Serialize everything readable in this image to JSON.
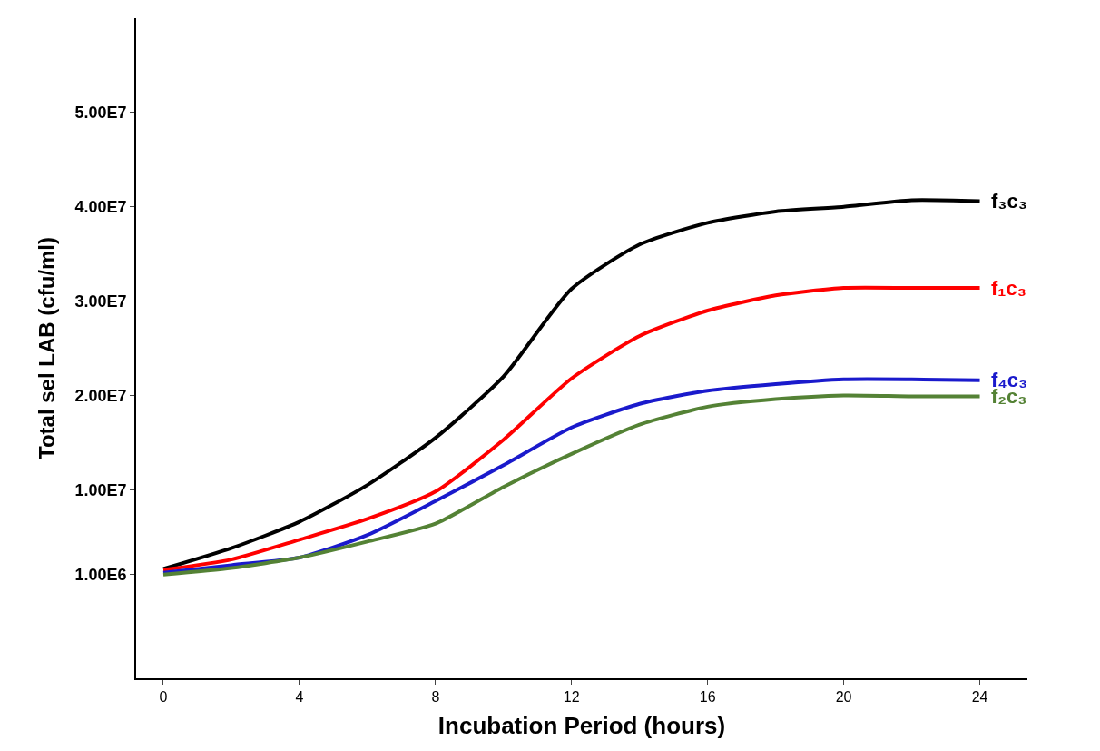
{
  "chart_data": {
    "type": "line",
    "xlabel": "Incubation Period (hours)",
    "ylabel": "Total sel LAB (cfu/ml)",
    "x": [
      0,
      2,
      4,
      6,
      8,
      10,
      12,
      14,
      16,
      18,
      20,
      22,
      24
    ],
    "series": [
      {
        "name": "f₃c₃",
        "color": "#000000",
        "values": [
          1600000,
          3800000,
          6600000,
          10500000,
          15500000,
          22000000,
          31300000,
          36000000,
          38300000,
          39500000,
          40000000,
          40700000,
          40600000
        ]
      },
      {
        "name": "f₁c₃",
        "color": "#ff0000",
        "values": [
          1500000,
          2600000,
          4700000,
          6900000,
          9800000,
          15300000,
          21800000,
          26300000,
          29000000,
          30600000,
          31400000,
          31400000,
          31400000
        ]
      },
      {
        "name": "f₄c₃",
        "color": "#1a1acc",
        "values": [
          1200000,
          2000000,
          2800000,
          5200000,
          8800000,
          12600000,
          16600000,
          19100000,
          20500000,
          21200000,
          21700000,
          21700000,
          21600000
        ]
      },
      {
        "name": "f₂c₃",
        "color": "#548235",
        "values": [
          1000000,
          1700000,
          2800000,
          4500000,
          6400000,
          10300000,
          13800000,
          16900000,
          18800000,
          19600000,
          20000000,
          19900000,
          19900000
        ]
      }
    ],
    "xlim": [
      -0.8,
      25.4
    ],
    "xticks": [
      0,
      4,
      8,
      12,
      16,
      20,
      24
    ],
    "ylim": [
      -10000000,
      60000000
    ],
    "yticks": [
      {
        "value": 1000000,
        "label": "1.00E6"
      },
      {
        "value": 10000000,
        "label": "1.00E7"
      },
      {
        "value": 20000000,
        "label": "2.00E7"
      },
      {
        "value": 30000000,
        "label": "3.00E7"
      },
      {
        "value": 40000000,
        "label": "4.00E7"
      },
      {
        "value": 50000000,
        "label": "5.00E7"
      }
    ],
    "line_style": "solid"
  }
}
